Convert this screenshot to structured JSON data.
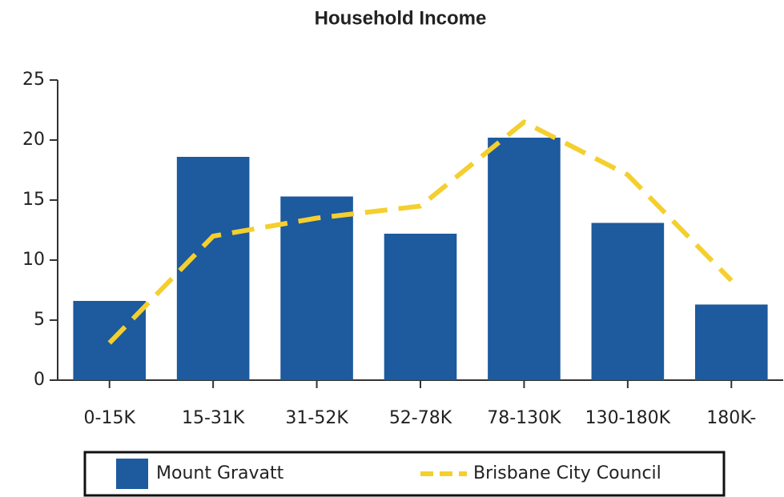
{
  "chart_data": {
    "type": "bar",
    "title": "Household Income",
    "categories": [
      "0-15K",
      "15-31K",
      "31-52K",
      "52-78K",
      "78-130K",
      "130-180K",
      "180K-"
    ],
    "series": [
      {
        "name": "Mount Gravatt",
        "type": "bar",
        "color": "#1d5a9e",
        "values": [
          6.6,
          18.6,
          15.3,
          12.2,
          20.2,
          13.1,
          6.3
        ]
      },
      {
        "name": "Brisbane City Council",
        "type": "line",
        "dashed": true,
        "color": "#f4cf2e",
        "values": [
          3.1,
          12.0,
          13.5,
          14.5,
          21.5,
          17.1,
          8.3
        ]
      }
    ],
    "ylim": [
      0,
      25
    ],
    "yticks": [
      0,
      5,
      10,
      15,
      20,
      25
    ],
    "grid": false,
    "legend": "bottom"
  }
}
